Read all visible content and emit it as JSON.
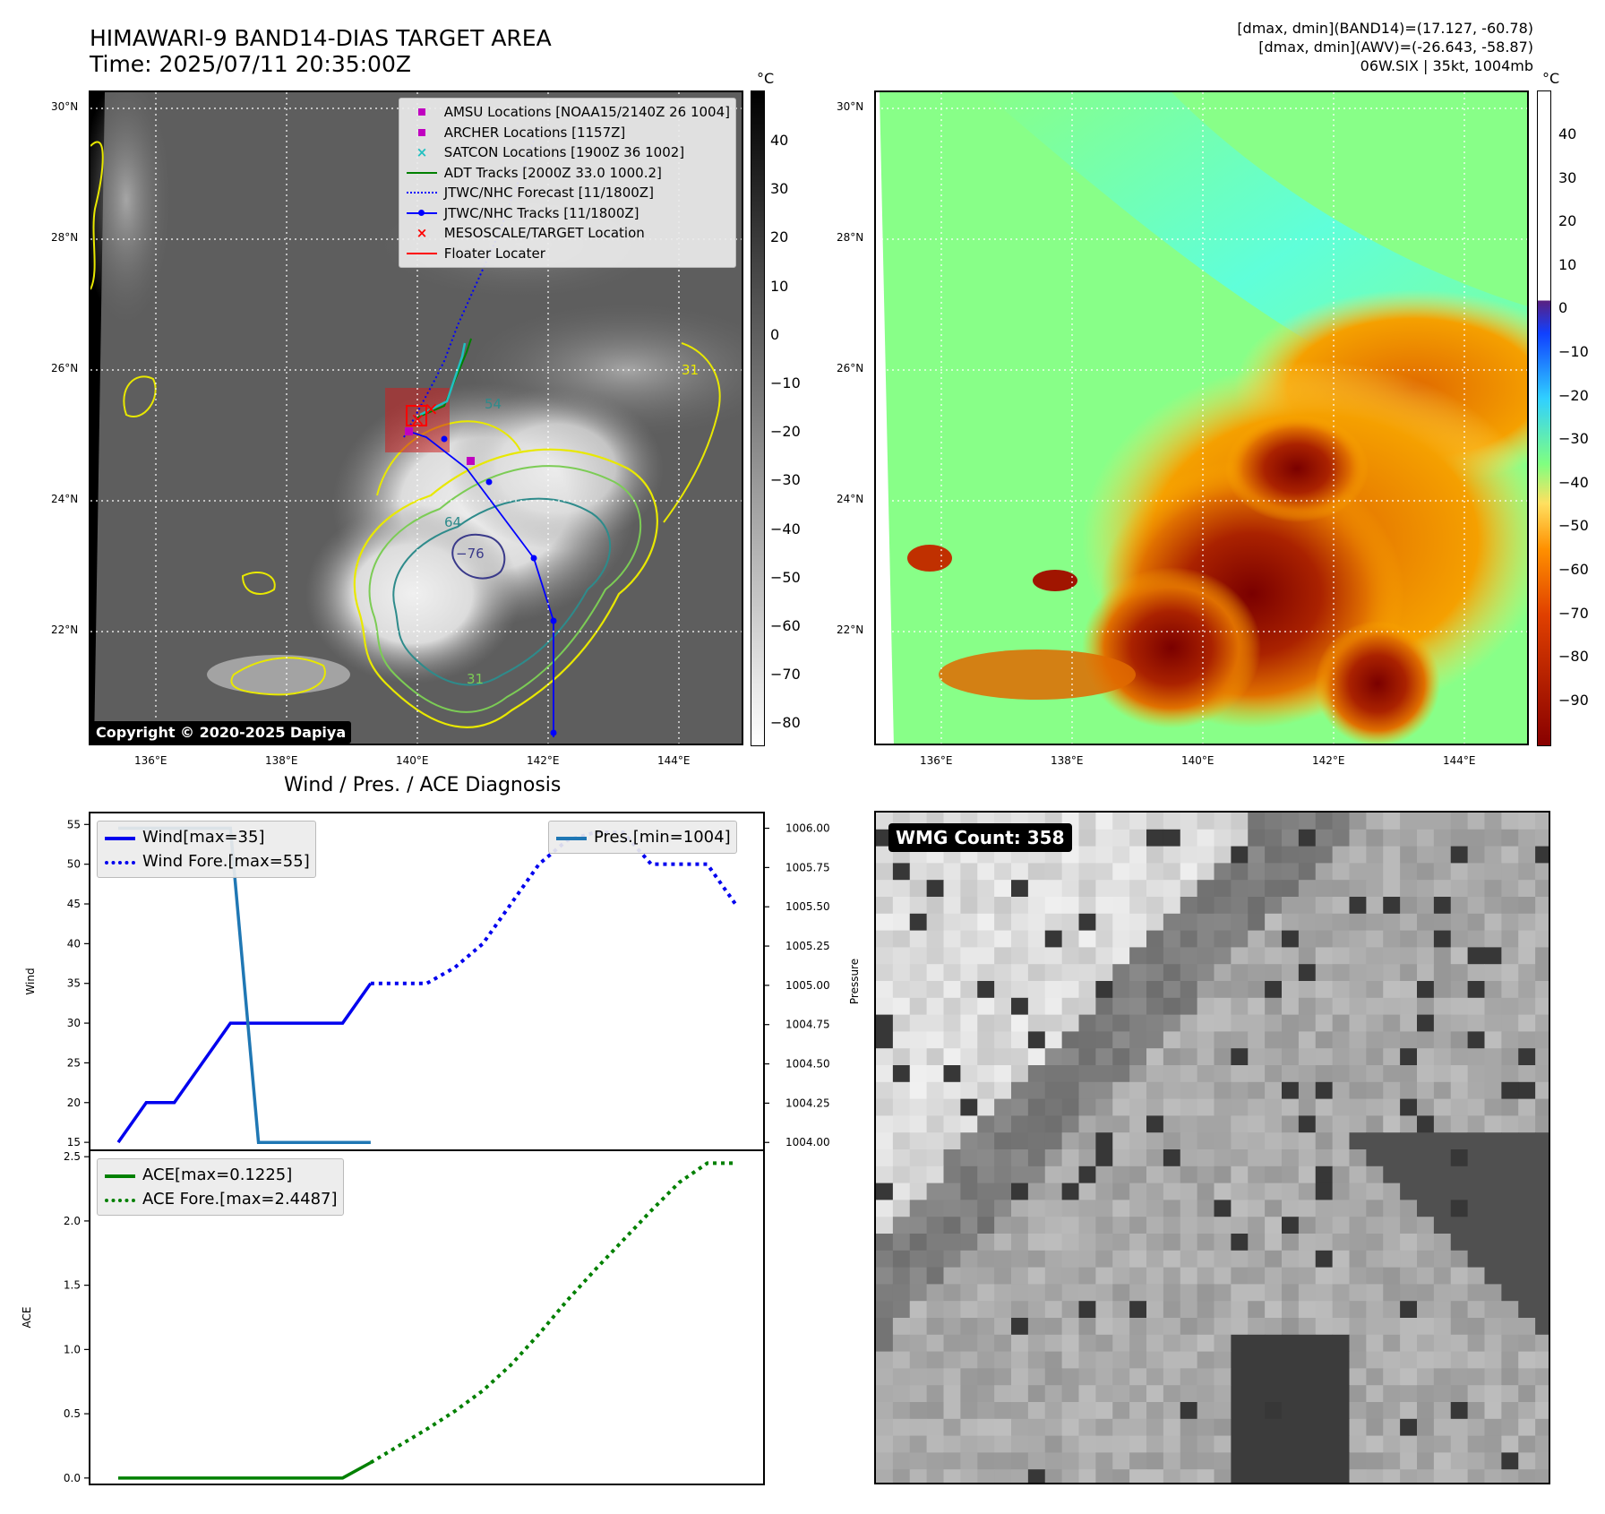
{
  "header": {
    "title_line1": "HIMAWARI-9 BAND14-DIAS TARGET AREA",
    "title_line2": "Time: 2025/07/11 20:35:00Z",
    "info_line1": "[dmax, dmin](BAND14)=(17.127, -60.78)",
    "info_line2": "[dmax, dmin](AWV)=(-26.643, -58.87)",
    "info_line3": "06W.SIX | 35kt, 1004mb"
  },
  "map_axes": {
    "lat_labels": [
      "30°N",
      "28°N",
      "26°N",
      "24°N",
      "22°N"
    ],
    "lon_labels": [
      "136°E",
      "138°E",
      "140°E",
      "142°E",
      "144°E"
    ]
  },
  "left_map": {
    "copyright": "Copyright © 2020-2025 Dapiya",
    "contour_labels": [
      "54",
      "64",
      "−76",
      "31",
      "31"
    ],
    "legend": [
      {
        "label": "AMSU Locations [NOAA15/2140Z 26 1004]",
        "symbol": "square",
        "color": "#c000c0"
      },
      {
        "label": "ARCHER Locations [1157Z]",
        "symbol": "square",
        "color": "#c000c0"
      },
      {
        "label": "SATCON Locations [1900Z 36 1002]",
        "symbol": "x",
        "color": "#20c0c0"
      },
      {
        "label": "ADT Tracks [2000Z 33.0 1000.2]",
        "symbol": "line",
        "color": "#008000"
      },
      {
        "label": "JTWC/NHC Forecast [11/1800Z]",
        "symbol": "dotted",
        "color": "#0000ff"
      },
      {
        "label": "JTWC/NHC Tracks [11/1800Z]",
        "symbol": "line-dot",
        "color": "#0000ff"
      },
      {
        "label": "MESOSCALE/TARGET Location",
        "symbol": "x",
        "color": "#ff0000"
      },
      {
        "label": "Floater Locater",
        "symbol": "line",
        "color": "#ff0000"
      }
    ],
    "colorbar": {
      "unit": "°C",
      "ticks": [
        "40",
        "30",
        "20",
        "10",
        "0",
        "−10",
        "−20",
        "−30",
        "−40",
        "−50",
        "−60",
        "−70",
        "−80"
      ]
    }
  },
  "right_map": {
    "colorbar": {
      "unit": "°C",
      "ticks": [
        "40",
        "30",
        "20",
        "10",
        "0",
        "−10",
        "−20",
        "−30",
        "−40",
        "−50",
        "−60",
        "−70",
        "−80",
        "−90"
      ]
    }
  },
  "wmg": {
    "label": "WMG Count: 358"
  },
  "chart_data": [
    {
      "type": "line",
      "title": "Wind / Pres. / ACE Diagnosis",
      "ylabel": "Wind",
      "y2label": "Pressure",
      "ylim": [
        14,
        56.5
      ],
      "y2lim": [
        1003.95,
        1006.1
      ],
      "yticks": [
        15,
        20,
        25,
        30,
        35,
        40,
        45,
        50,
        55
      ],
      "y2ticks": [
        "1004.00",
        "1004.25",
        "1004.50",
        "1004.75",
        "1005.00",
        "1005.25",
        "1005.50",
        "1005.75",
        "1006.00"
      ],
      "series": [
        {
          "name": "Wind[max=35]",
          "style": "solid",
          "color": "#0000ee",
          "x": [
            0,
            1,
            2,
            4,
            8,
            9
          ],
          "y": [
            15,
            20,
            20,
            30,
            30,
            35
          ]
        },
        {
          "name": "Wind Fore.[max=55]",
          "style": "dotted",
          "color": "#0000ee",
          "x": [
            9,
            11,
            12,
            13,
            14,
            15,
            16,
            17,
            18,
            19,
            20,
            21,
            22
          ],
          "y": [
            35,
            35,
            37,
            40,
            45,
            50,
            53,
            54,
            54,
            50,
            50,
            50,
            45
          ]
        },
        {
          "name": "Pres.[min=1004]",
          "style": "solid",
          "color": "#1f77b4",
          "axis": "right",
          "x": [
            0,
            4,
            5,
            9
          ],
          "y": [
            1006,
            1006,
            1004,
            1004
          ]
        }
      ]
    },
    {
      "type": "line",
      "ylabel": "ACE",
      "ylim": [
        -0.05,
        2.55
      ],
      "yticks": [
        "0.0",
        "0.5",
        "1.0",
        "1.5",
        "2.0",
        "2.5"
      ],
      "series": [
        {
          "name": "ACE[max=0.1225]",
          "style": "solid",
          "color": "#008000",
          "x": [
            0,
            8,
            9
          ],
          "y": [
            0,
            0,
            0.12
          ]
        },
        {
          "name": "ACE Fore.[max=2.4487]",
          "style": "dotted",
          "color": "#008000",
          "x": [
            9,
            10,
            11,
            12,
            13,
            14,
            15,
            16,
            17,
            18,
            19,
            20,
            21,
            22
          ],
          "y": [
            0.12,
            0.25,
            0.38,
            0.52,
            0.68,
            0.88,
            1.12,
            1.38,
            1.62,
            1.85,
            2.08,
            2.3,
            2.45,
            2.45
          ]
        }
      ]
    }
  ]
}
